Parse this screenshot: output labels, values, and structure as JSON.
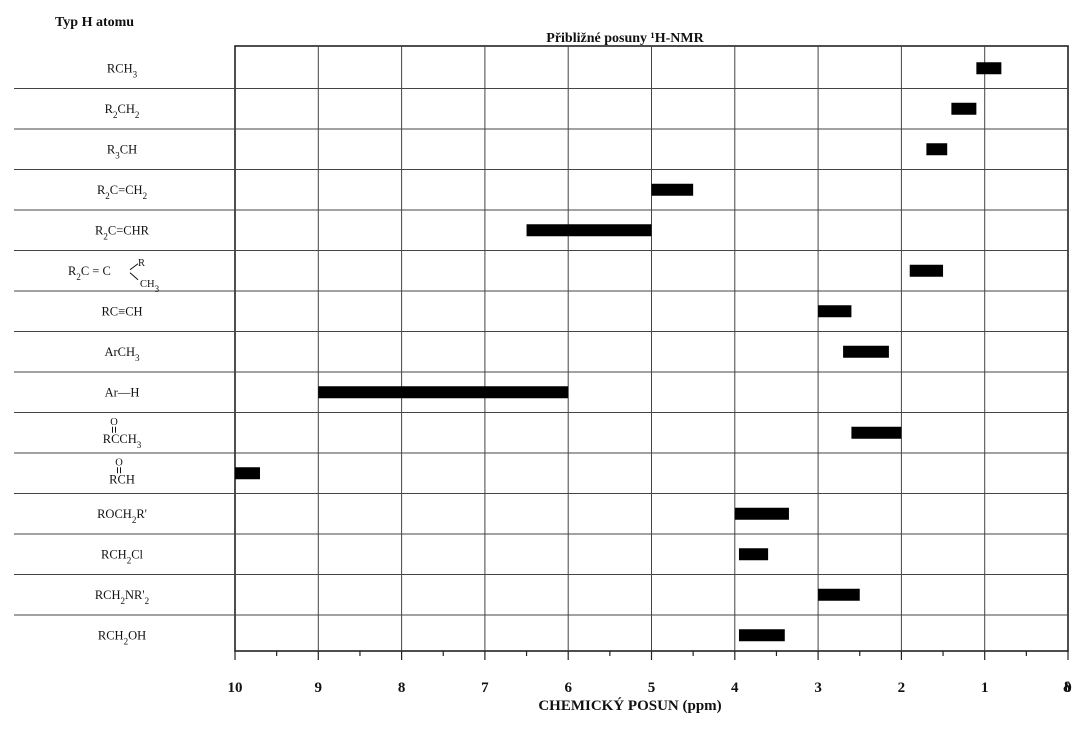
{
  "chart_data": {
    "type": "bar",
    "orientation": "horizontal-range",
    "title": "Přibližné posuny ¹H-NMR",
    "row_header": "Typ H atomu",
    "xlabel": "CHEMICKÝ POSUN (ppm)",
    "x_unit_symbol": "δ",
    "x_reversed": true,
    "xlim": [
      10,
      0
    ],
    "x_ticks": [
      10,
      9,
      8,
      7,
      6,
      5,
      4,
      3,
      2,
      1,
      0
    ],
    "x_tick_labels": [
      "10",
      "9",
      "8",
      "7",
      "6",
      "5",
      "4",
      "3",
      "2",
      "1",
      "0"
    ],
    "grid": true,
    "categories": [
      "RCH3",
      "R2CH2",
      "R3CH",
      "R2C=CH2",
      "R2C=CHR",
      "R2C=C(R)CH3",
      "RC≡CH",
      "ArCH3",
      "Ar−H",
      "RC(O)CH3",
      "RC(O)H",
      "ROCH2R'",
      "RCH2Cl",
      "RCH2NR'2",
      "RCH2OH"
    ],
    "ranges": [
      [
        1.1,
        0.8
      ],
      [
        1.4,
        1.1
      ],
      [
        1.7,
        1.45
      ],
      [
        5.0,
        4.5
      ],
      [
        6.5,
        5.0
      ],
      [
        1.9,
        1.5
      ],
      [
        3.0,
        2.6
      ],
      [
        2.7,
        2.15
      ],
      [
        9.0,
        6.0
      ],
      [
        2.6,
        2.0
      ],
      [
        10.0,
        9.7
      ],
      [
        4.0,
        3.35
      ],
      [
        3.95,
        3.6
      ],
      [
        3.0,
        2.5
      ],
      [
        3.95,
        3.4
      ]
    ]
  },
  "labels": [
    {
      "parts": [
        {
          "t": "RCH"
        },
        {
          "t": "3",
          "sub": true
        }
      ]
    },
    {
      "parts": [
        {
          "t": "R"
        },
        {
          "t": "2",
          "sub": true
        },
        {
          "t": "CH"
        },
        {
          "t": "2",
          "sub": true
        }
      ]
    },
    {
      "parts": [
        {
          "t": "R"
        },
        {
          "t": "3",
          "sub": true
        },
        {
          "t": "CH"
        }
      ]
    },
    {
      "parts": [
        {
          "t": "R"
        },
        {
          "t": "2",
          "sub": true
        },
        {
          "t": "C"
        },
        {
          "t": "=",
          "dbl": true
        },
        {
          "t": "CH"
        },
        {
          "t": "2",
          "sub": true
        }
      ]
    },
    {
      "parts": [
        {
          "t": "R"
        },
        {
          "t": "2",
          "sub": true
        },
        {
          "t": "C"
        },
        {
          "t": "=",
          "dbl": true
        },
        {
          "t": "CHR"
        }
      ]
    },
    {
      "special": "branched",
      "main": "R",
      "sub2": "2",
      "c1": "C",
      "c2": "C",
      "up": "R",
      "down": "CH",
      "down_sub": "3"
    },
    {
      "parts": [
        {
          "t": "RC"
        },
        {
          "t": "≡",
          "tri": true
        },
        {
          "t": "CH"
        }
      ]
    },
    {
      "parts": [
        {
          "t": "ArCH"
        },
        {
          "t": "3",
          "sub": true
        }
      ]
    },
    {
      "parts": [
        {
          "t": "Ar"
        },
        {
          "t": "—",
          "dash": true
        },
        {
          "t": "H"
        }
      ]
    },
    {
      "special": "carbonyl",
      "o": "O",
      "pre": "R",
      "c": "C",
      "post": "CH",
      "post_sub": "3"
    },
    {
      "special": "carbonyl",
      "o": "O",
      "pre": "R",
      "c": "C",
      "post": "H",
      "post_sub": ""
    },
    {
      "parts": [
        {
          "t": "ROCH"
        },
        {
          "t": "2",
          "sub": true
        },
        {
          "t": "R'"
        }
      ]
    },
    {
      "parts": [
        {
          "t": "RCH"
        },
        {
          "t": "2",
          "sub": true
        },
        {
          "t": "Cl"
        }
      ]
    },
    {
      "parts": [
        {
          "t": "RCH"
        },
        {
          "t": "2",
          "sub": true
        },
        {
          "t": "NR'"
        },
        {
          "t": "2",
          "sub": true
        }
      ]
    },
    {
      "parts": [
        {
          "t": "RCH"
        },
        {
          "t": "2",
          "sub": true
        },
        {
          "t": "OH"
        }
      ]
    }
  ]
}
